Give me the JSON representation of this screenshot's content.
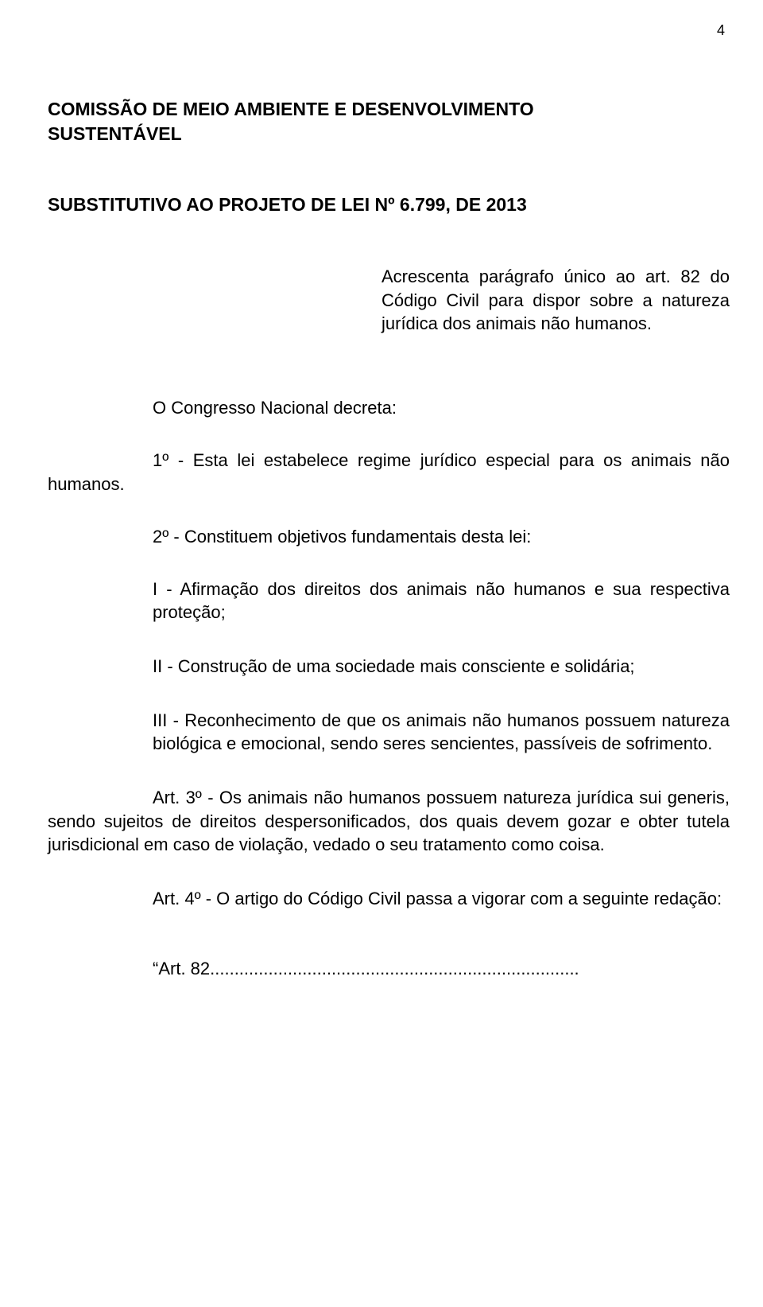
{
  "page_number": "4",
  "heading_line1": "COMISSÃO DE MEIO AMBIENTE E DESENVOLVIMENTO",
  "heading_line2": "SUSTENTÁVEL",
  "subheading": "SUBSTITUTIVO AO PROJETO DE LEI Nº 6.799, DE 2013",
  "ementa": "Acrescenta parágrafo único ao art. 82 do Código Civil para dispor sobre a natureza jurídica dos animais não humanos.",
  "decreta": "O Congresso Nacional decreta:",
  "art1": "1º - Esta lei estabelece regime jurídico especial para os animais não humanos.",
  "art2_intro": "2º - Constituem objetivos fundamentais desta lei:",
  "inciso_I": "I - Afirmação dos direitos dos animais não humanos e sua respectiva proteção;",
  "inciso_II": "II - Construção de uma sociedade mais consciente e solidária;",
  "inciso_III": "III - Reconhecimento de que os animais não humanos possuem natureza biológica e emocional, sendo seres sencientes, passíveis de sofrimento.",
  "art3": "Art. 3º - Os animais não humanos possuem natureza jurídica sui generis, sendo sujeitos de direitos despersonificados, dos quais devem gozar e obter tutela jurisdicional em caso de violação, vedado o seu tratamento como coisa.",
  "art4": "Art. 4º - O artigo do Código Civil passa a vigorar com a seguinte redação:",
  "quote": "“Art. 82............................................................................",
  "colors": {
    "text": "#000000",
    "background": "#ffffff"
  },
  "typography": {
    "font_family": "Arial",
    "body_size_pt": 16,
    "heading_weight": "bold"
  }
}
